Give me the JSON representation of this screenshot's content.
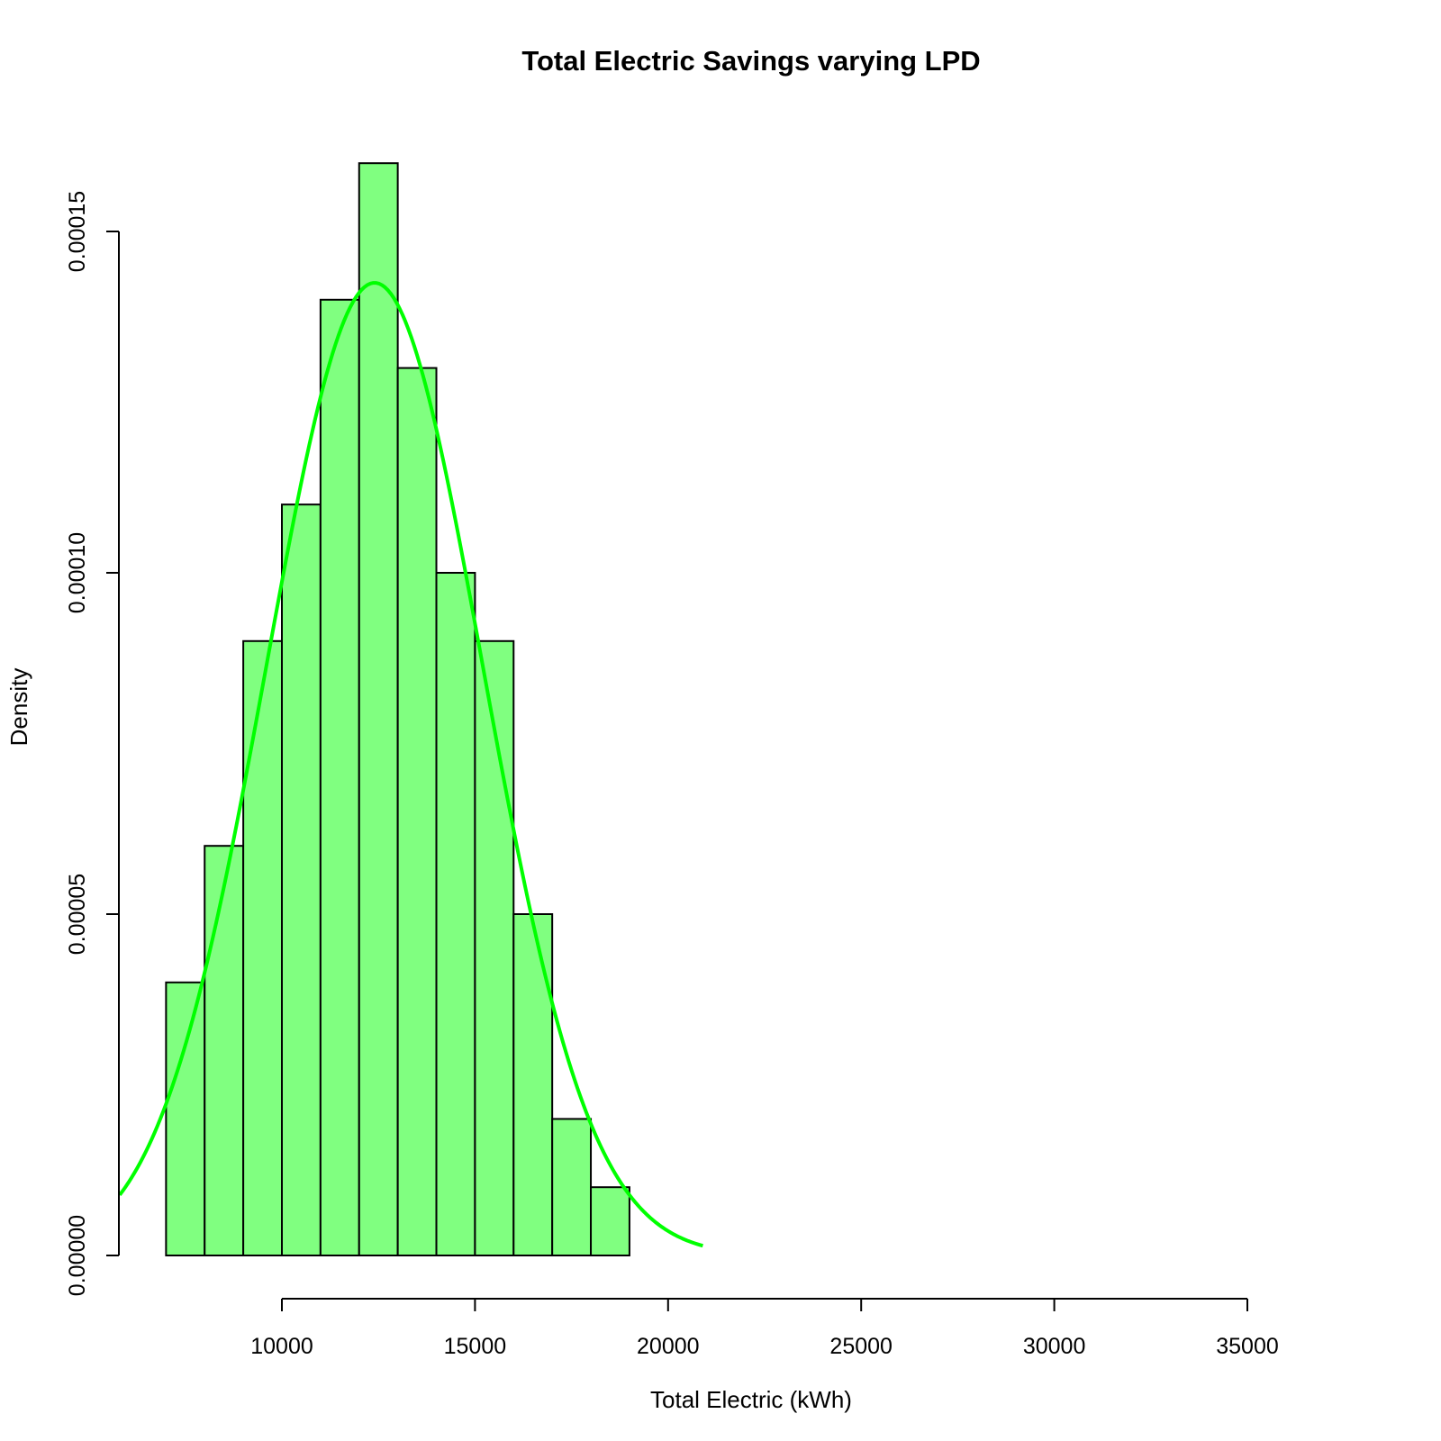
{
  "chart_data": {
    "type": "bar",
    "title": "Total Electric Savings varying LPD",
    "xlabel": "Total Electric (kWh)",
    "ylabel": "Density",
    "xlim": [
      5700,
      35000
    ],
    "ylim": [
      0,
      0.00016
    ],
    "x_ticks": [
      10000,
      15000,
      20000,
      25000,
      30000,
      35000
    ],
    "x_tick_labels": [
      "10000",
      "15000",
      "20000",
      "25000",
      "30000",
      "35000"
    ],
    "y_ticks": [
      0,
      5e-05,
      0.0001,
      0.00015
    ],
    "y_tick_labels": [
      "0.00000",
      "0.00005",
      "0.00010",
      "0.00015"
    ],
    "bins": [
      {
        "start": 7000,
        "end": 8000,
        "density": 4e-05
      },
      {
        "start": 8000,
        "end": 9000,
        "density": 6e-05
      },
      {
        "start": 9000,
        "end": 10000,
        "density": 9e-05
      },
      {
        "start": 10000,
        "end": 11000,
        "density": 0.00011
      },
      {
        "start": 11000,
        "end": 12000,
        "density": 0.00014
      },
      {
        "start": 12000,
        "end": 13000,
        "density": 0.00016
      },
      {
        "start": 13000,
        "end": 14000,
        "density": 0.00013
      },
      {
        "start": 14000,
        "end": 15000,
        "density": 0.0001
      },
      {
        "start": 15000,
        "end": 16000,
        "density": 9e-05
      },
      {
        "start": 16000,
        "end": 17000,
        "density": 5e-05
      },
      {
        "start": 17000,
        "end": 18000,
        "density": 2e-05
      },
      {
        "start": 18000,
        "end": 19000,
        "density": 1e-05
      }
    ],
    "density_curve": {
      "type": "normal",
      "mean": 12400,
      "sd": 2800,
      "x_range": [
        5800,
        20900
      ]
    },
    "colors": {
      "bar_fill": "#80ff80",
      "bar_border": "#000000",
      "curve": "#00ff00"
    },
    "grid": false,
    "legend": "none"
  }
}
